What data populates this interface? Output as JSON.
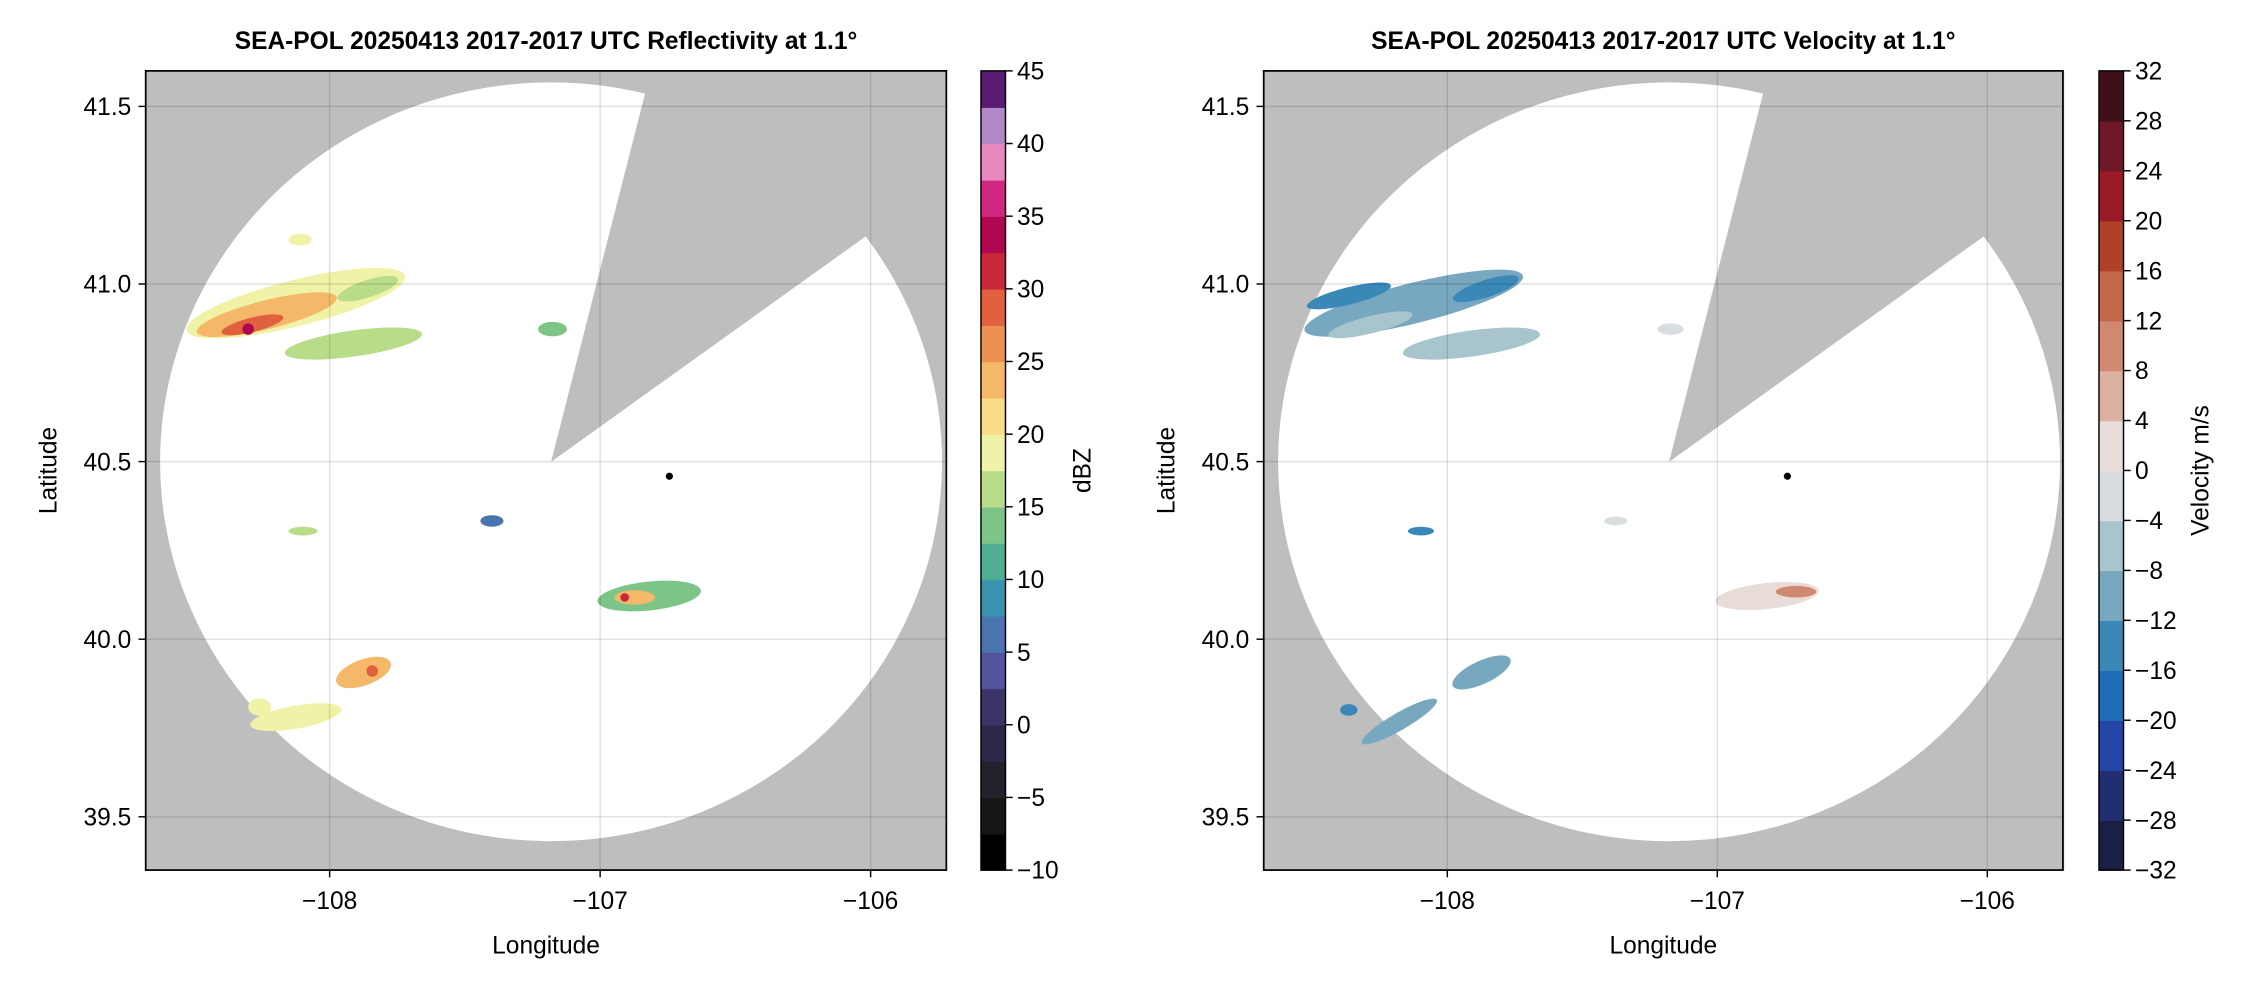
{
  "chart_data": [
    {
      "type": "radar",
      "title": "SEA-POL 20250413 2017-2017 UTC Reflectivity at 1.1°",
      "xlabel": "Longitude",
      "ylabel": "Latitude",
      "xlim": [
        -108.68,
        -105.72
      ],
      "ylim": [
        39.35,
        41.6
      ],
      "xticks": [
        {
          "value": -108,
          "label": "−108"
        },
        {
          "value": -107,
          "label": "−107"
        },
        {
          "value": -106,
          "label": "−106"
        }
      ],
      "yticks": [
        39.5,
        {
          "value": 40,
          "label": "40.0"
        },
        40.5,
        {
          "value": 41,
          "label": "41.0"
        },
        41.5
      ],
      "grid": true,
      "colorbar": {
        "label": "dBZ",
        "lim": [
          -10,
          45
        ],
        "ticks": [
          {
            "value": -10,
            "label": "−10"
          },
          {
            "value": -5,
            "label": "−5"
          },
          0,
          5,
          10,
          15,
          20,
          25,
          30,
          35,
          40,
          45
        ],
        "colors": [
          "#000000",
          "#161616",
          "#24202c",
          "#2e2848",
          "#3a3468",
          "#54549c",
          "#4a74b0",
          "#3a92ac",
          "#4ead92",
          "#7cc488",
          "#b8dc88",
          "#f0f2a8",
          "#f8dc88",
          "#f4b868",
          "#ee9050",
          "#e06040",
          "#c82838",
          "#b00850",
          "#d02880",
          "#e888c0",
          "#b088c8",
          "#5a1a70"
        ]
      }
    },
    {
      "type": "radar",
      "title": "SEA-POL 20250413 2017-2017 UTC Velocity at 1.1°",
      "xlabel": "Longitude",
      "ylabel": "Latitude",
      "xlim": [
        -108.68,
        -105.72
      ],
      "ylim": [
        39.35,
        41.6
      ],
      "xticks": [
        {
          "value": -108,
          "label": "−108"
        },
        {
          "value": -107,
          "label": "−107"
        },
        {
          "value": -106,
          "label": "−106"
        }
      ],
      "yticks": [
        39.5,
        {
          "value": 40,
          "label": "40.0"
        },
        40.5,
        {
          "value": 41,
          "label": "41.0"
        },
        41.5
      ],
      "grid": true,
      "colorbar": {
        "label": "Velocity m/s",
        "lim": [
          -32,
          32
        ],
        "ticks": [
          {
            "value": -32,
            "label": "−32"
          },
          {
            "value": -28,
            "label": "−28"
          },
          {
            "value": -24,
            "label": "−24"
          },
          {
            "value": -20,
            "label": "−20"
          },
          {
            "value": -16,
            "label": "−16"
          },
          {
            "value": -12,
            "label": "−12"
          },
          {
            "value": -8,
            "label": "−8"
          },
          {
            "value": -4,
            "label": "−4"
          },
          0,
          4,
          8,
          12,
          16,
          20,
          24,
          28,
          32
        ],
        "colors": [
          "#1a1f45",
          "#232e70",
          "#2446a8",
          "#1f6cb8",
          "#3a88b8",
          "#78a8c0",
          "#a8c4cc",
          "#d8dde0",
          "#e8dcd8",
          "#dcb0a0",
          "#d08870",
          "#c06848",
          "#b04028",
          "#9a1a28",
          "#701828",
          "#401018"
        ]
      }
    }
  ]
}
